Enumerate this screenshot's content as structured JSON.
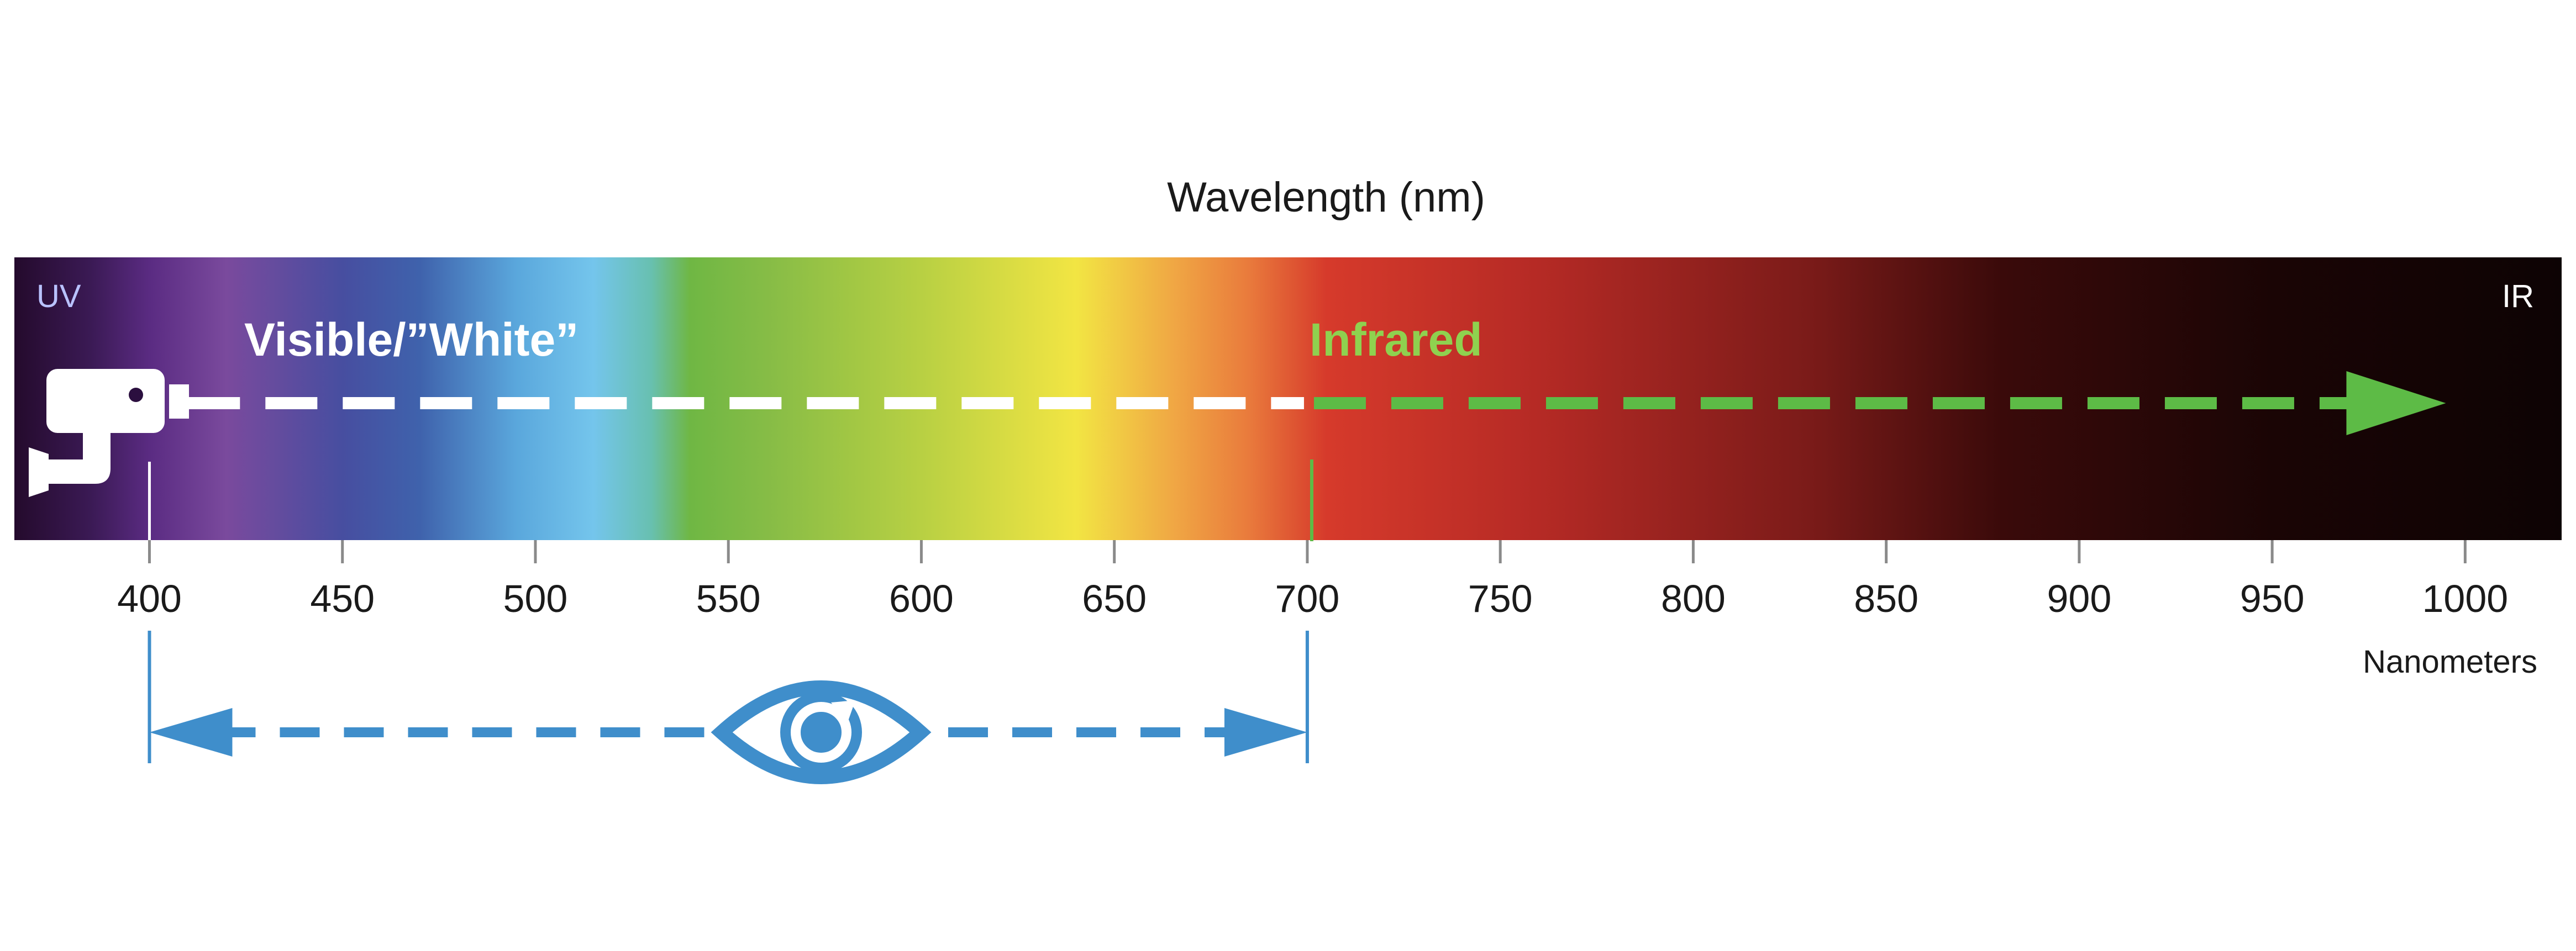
{
  "title": "Wavelength (nm)",
  "unit_label": "Nanometers",
  "band_end_labels": {
    "left": "UV",
    "right": "IR"
  },
  "range_labels": {
    "visible": "Visible/”White”",
    "infrared": "Infrared"
  },
  "axis": {
    "min": 365,
    "max": 1025,
    "ticks": [
      400,
      450,
      500,
      550,
      600,
      650,
      700,
      750,
      800,
      850,
      900,
      950,
      1000
    ],
    "tick_labels": [
      "400",
      "450",
      "500",
      "550",
      "600",
      "650",
      "700",
      "750",
      "800",
      "850",
      "900",
      "950",
      "1000"
    ]
  },
  "ranges": {
    "human_visible": [
      400,
      700
    ],
    "camera_visible_start": 410,
    "infrared_start": 700,
    "infrared_arrow_end": 995
  },
  "icons": {
    "camera": "security-camera-icon",
    "eye": "eye-icon"
  },
  "colors": {
    "visible_arrow": "#ffffff",
    "infrared_arrow": "#5dbb46",
    "infrared_text": "#8fd14f",
    "human_vision": "#3f8ecb",
    "uv_text": "#b9c2ff",
    "spectrum_stops": [
      [
        "#240a2c",
        365
      ],
      [
        "#3b1a55",
        385
      ],
      [
        "#5a2b82",
        400
      ],
      [
        "#7a4a9d",
        420
      ],
      [
        "#474ea0",
        450
      ],
      [
        "#3f62ac",
        470
      ],
      [
        "#5aa7dc",
        495
      ],
      [
        "#74c5ec",
        515
      ],
      [
        "#68c0b0",
        530
      ],
      [
        "#6fb744",
        540
      ],
      [
        "#86bc46",
        560
      ],
      [
        "#b8d043",
        600
      ],
      [
        "#f2e543",
        640
      ],
      [
        "#f0a844",
        665
      ],
      [
        "#e97a3c",
        685
      ],
      [
        "#d63a2b",
        705
      ],
      [
        "#b52a25",
        760
      ],
      [
        "#7b1b19",
        830
      ],
      [
        "#3a0a0a",
        880
      ],
      [
        "#1a0505",
        950
      ],
      [
        "#0d0304",
        1025
      ]
    ]
  }
}
